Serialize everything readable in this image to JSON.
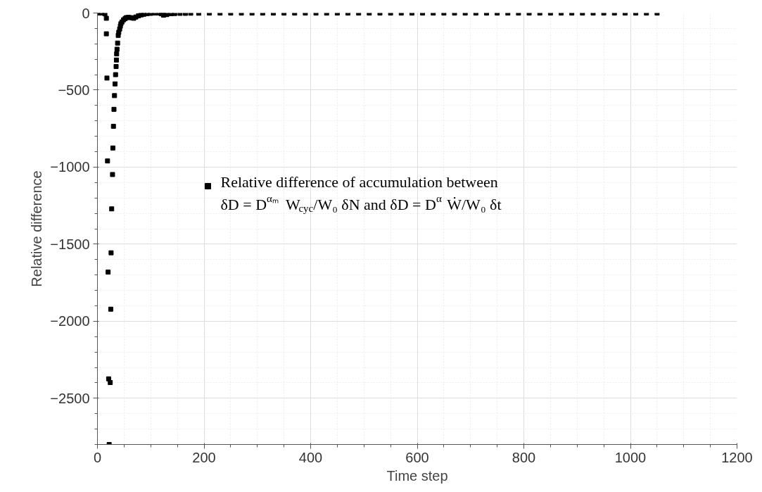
{
  "chart_data": {
    "type": "scatter",
    "xlabel": "Time step",
    "ylabel": "Relative difference",
    "x": [
      0,
      8,
      14,
      16.7,
      16.7,
      17.8,
      18.9,
      20,
      21,
      22,
      24,
      25,
      25.6,
      26.7,
      28.3,
      28.9,
      30,
      31,
      32,
      33,
      34,
      35,
      35.6,
      36,
      36.7,
      37.8,
      39,
      40,
      41.7,
      43,
      44,
      46,
      49,
      52,
      54,
      58,
      62,
      66,
      68,
      72,
      77,
      82,
      87,
      93,
      100,
      108,
      116,
      120,
      124,
      130,
      138,
      145,
      155,
      165,
      175,
      190,
      210,
      230,
      250,
      270,
      290,
      310,
      330,
      350,
      370,
      390,
      410,
      430,
      450,
      470,
      490,
      510,
      530,
      550,
      570,
      590,
      610,
      630,
      650,
      670,
      690,
      710,
      730,
      750,
      770,
      790,
      810,
      830,
      850,
      870,
      890,
      910,
      930,
      950,
      970,
      990,
      1010,
      1030,
      1050
    ],
    "series": [
      {
        "name": "Relative difference of accumulation between δD = D$^{αₘ}$ W$_{cyc}$/W₀ δN and δD = D$^{α}$ Ẇ/W₀ δt",
        "color": "#000000",
        "values": [
          0,
          0,
          -5,
          -34,
          -135,
          -422,
          -960,
          -1681,
          -2374,
          -2800,
          -2398,
          -1922,
          -1556,
          -1271,
          -1048,
          -876,
          -735,
          -625,
          -536,
          -460,
          -400,
          -347,
          -305,
          -265,
          -235,
          -195,
          -145,
          -125,
          -104,
          -85,
          -70,
          -58,
          -44,
          -36,
          -30,
          -28,
          -30,
          -32,
          -34,
          -26,
          -18,
          -12,
          -8,
          -4,
          -2,
          0,
          0,
          -5,
          -14,
          -10,
          -4,
          -3,
          -2,
          -2,
          -1,
          -1,
          0,
          0,
          0,
          0,
          0,
          0,
          0,
          0,
          0,
          0,
          0,
          0,
          0,
          0,
          0,
          0,
          0,
          0,
          0,
          0,
          0,
          0,
          0,
          0,
          0,
          0,
          0,
          0,
          0,
          0,
          0,
          0,
          0,
          0,
          0,
          0,
          0,
          0,
          0,
          0,
          0,
          0,
          0
        ]
      }
    ],
    "xlim": [
      0,
      1200
    ],
    "ylim": [
      -2800,
      0
    ],
    "xticks": [
      0,
      200,
      400,
      600,
      800,
      1000,
      1200
    ],
    "yticks": [
      -2500,
      -2000,
      -1500,
      -1000,
      -500,
      0
    ],
    "grid": true,
    "legend": "center",
    "marker": "square"
  }
}
